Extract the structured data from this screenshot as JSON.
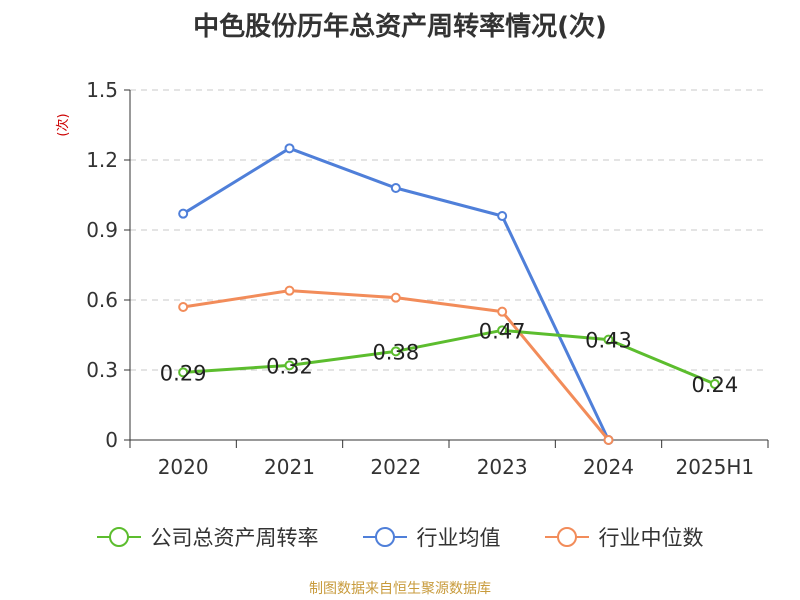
{
  "chart_data": {
    "type": "line",
    "title": "中色股份历年总资产周转率情况(次)",
    "ylabel": "(次)",
    "xlabel": "",
    "categories": [
      "2020",
      "2021",
      "2022",
      "2023",
      "2024",
      "2025H1"
    ],
    "ylim": [
      0,
      1.5
    ],
    "yticks": [
      0,
      0.3,
      0.6,
      0.9,
      1.2,
      1.5
    ],
    "ytick_labels": [
      "0",
      "0.3",
      "0.6",
      "0.9",
      "1.2",
      "1.5"
    ],
    "grid": true,
    "legend_position": "bottom",
    "series": [
      {
        "name": "公司总资产周转率",
        "color": "#5cbd2e",
        "values": [
          0.29,
          0.32,
          0.38,
          0.47,
          0.43,
          0.24
        ],
        "labels": [
          "0.29",
          "0.32",
          "0.38",
          "0.47",
          "0.43",
          "0.24"
        ]
      },
      {
        "name": "行业均值",
        "color": "#4f7fd9",
        "values": [
          0.97,
          1.25,
          1.08,
          0.96,
          0,
          null
        ]
      },
      {
        "name": "行业中位数",
        "color": "#f28c5a",
        "values": [
          0.57,
          0.64,
          0.61,
          0.55,
          0,
          null
        ]
      }
    ]
  },
  "source": "制图数据来自恒生聚源数据库"
}
